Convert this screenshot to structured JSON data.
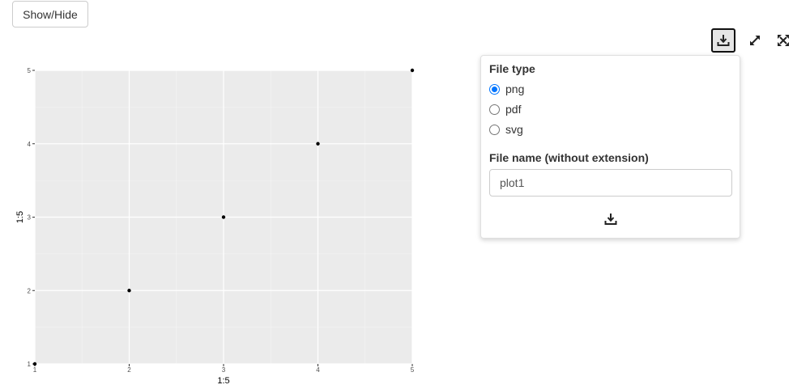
{
  "toggle_button": {
    "label": "Show/Hide"
  },
  "toolbar": {
    "items": [
      {
        "icon": "download-icon",
        "active": true
      },
      {
        "icon": "expand-icon",
        "active": false
      },
      {
        "icon": "fullscreen-icon",
        "active": false
      }
    ]
  },
  "download_panel": {
    "file_type_label": "File type",
    "options": [
      {
        "label": "png",
        "checked": true
      },
      {
        "label": "pdf",
        "checked": false
      },
      {
        "label": "svg",
        "checked": false
      }
    ],
    "file_name_label": "File name (without extension)",
    "file_name_value": "plot1",
    "download_icon": "download-icon",
    "accent_color": "#0075ff"
  },
  "chart_data": {
    "type": "scatter",
    "x": [
      1,
      2,
      3,
      4,
      5
    ],
    "y": [
      1,
      2,
      3,
      4,
      5
    ],
    "xlabel": "1:5",
    "ylabel": "1:5",
    "xlim": [
      1,
      5
    ],
    "ylim": [
      1,
      5
    ],
    "x_ticks": [
      1,
      2,
      3,
      4,
      5
    ],
    "y_ticks": [
      1,
      2,
      3,
      4,
      5
    ],
    "grid": true,
    "panel_color": "#ebebeb",
    "point_color": "#000000"
  }
}
